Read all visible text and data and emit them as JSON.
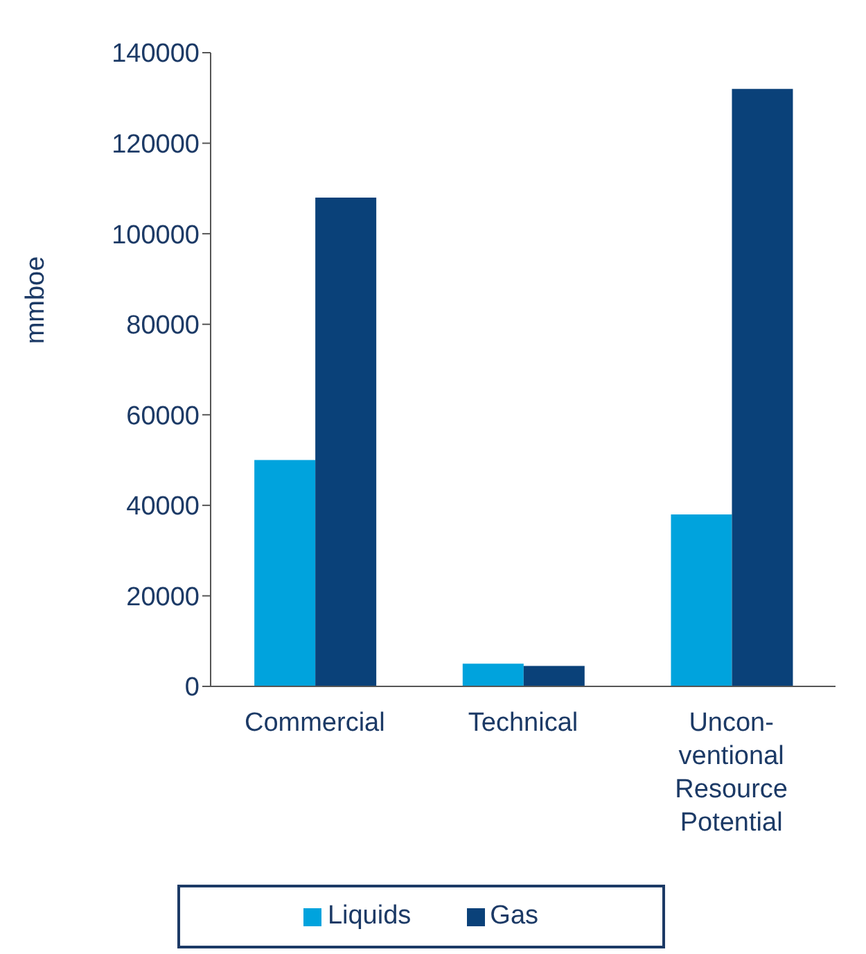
{
  "chart_data": {
    "type": "bar",
    "ylabel": "mmboe",
    "categories": [
      "Commercial",
      "Technical",
      "Uncon-\nventional\nResource\nPotential"
    ],
    "series": [
      {
        "name": "Liquids",
        "color": "#00a3dd",
        "values": [
          50000,
          5000,
          38000
        ]
      },
      {
        "name": "Gas",
        "color": "#0a4179",
        "values": [
          108000,
          4500,
          132000
        ]
      }
    ],
    "ylim": [
      0,
      140000
    ],
    "yticks": [
      0,
      20000,
      40000,
      60000,
      80000,
      100000,
      120000,
      140000
    ],
    "legend": "bottom"
  }
}
